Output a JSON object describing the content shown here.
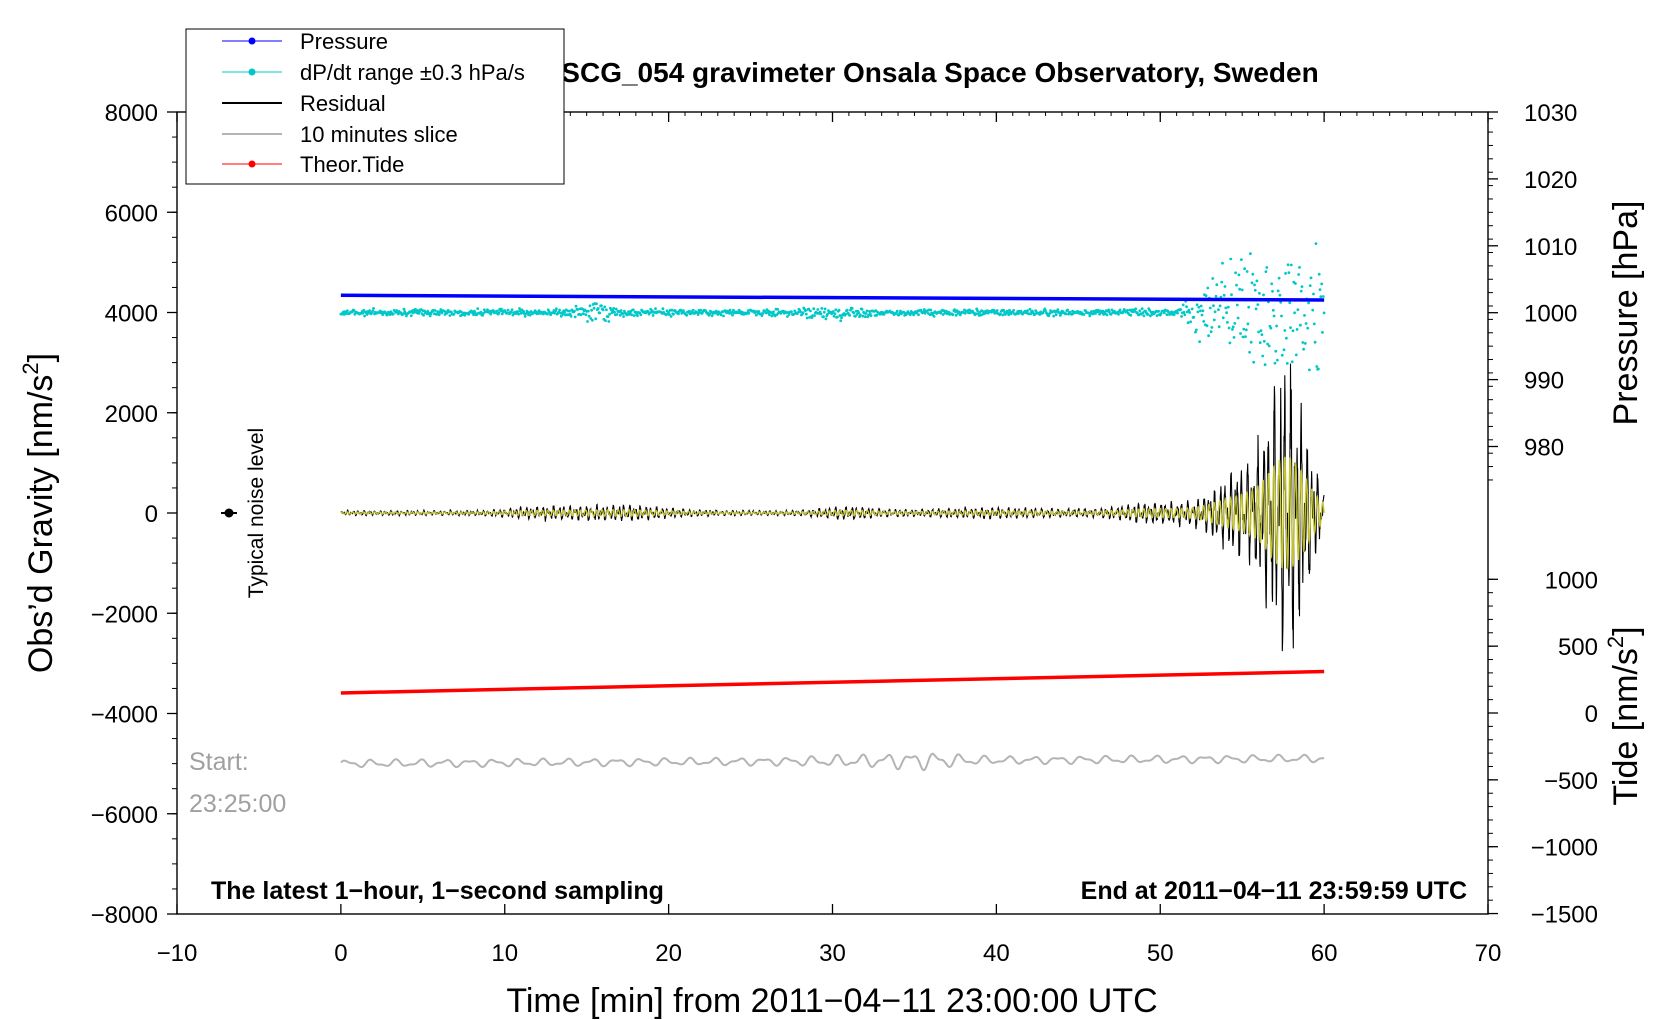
{
  "chart_data": {
    "type": "line",
    "title": "SCG_054 gravimeter Onsala Space Observatory, Sweden",
    "xlabel": "Time [min] from 2011−04−11 23:00:00 UTC",
    "ylabel_left_prefix": "Obs’d Gravity [nm/s",
    "ylabel_left_sup": "2",
    "ylabel_left_suffix": "]",
    "ylabel_right_pressure": "Pressure [hPa]",
    "ylabel_right_tide_prefix": "Tide [nm/s",
    "ylabel_right_tide_sup": "2",
    "ylabel_right_tide_suffix": "]",
    "xlim": [
      -10,
      70
    ],
    "ylim_left": [
      -8000,
      8000
    ],
    "x_ticks": [
      -10,
      0,
      10,
      20,
      30,
      40,
      50,
      60,
      70
    ],
    "x_tick_labels": [
      "−10",
      "0",
      "10",
      "20",
      "30",
      "40",
      "50",
      "60",
      "70"
    ],
    "y_left_ticks": [
      8000,
      6000,
      4000,
      2000,
      0,
      -2000,
      -4000,
      -6000,
      -8000
    ],
    "y_left_tick_labels": [
      "8000",
      "6000",
      "4000",
      "2000",
      "0",
      "−2000",
      "−4000",
      "−6000",
      "−8000"
    ],
    "pressure_ticks": [
      1030,
      1020,
      1010,
      1000,
      990,
      980
    ],
    "pressure_tick_labels": [
      "1030",
      "1020",
      "1010",
      "1000",
      "990",
      "980"
    ],
    "tide_ticks": [
      1000,
      500,
      0,
      -500,
      -1000,
      -1500
    ],
    "tide_tick_labels": [
      "1000",
      "500",
      "0",
      "−500",
      "−1000",
      "−1500"
    ],
    "legend": {
      "placement": "top-left",
      "entries": [
        {
          "label": "Pressure",
          "color": "#0000ff",
          "marker": true
        },
        {
          "label": "dP/dt range ±0.3 hPa/s",
          "color": "#00c8c8",
          "marker": true
        },
        {
          "label": "Residual",
          "color": "#000000",
          "marker": false
        },
        {
          "label": "10 minutes slice",
          "color": "#b4b4b4",
          "marker": false
        },
        {
          "label": "Theor.Tide",
          "color": "#ff0000",
          "marker": true
        }
      ]
    },
    "annotations": {
      "noise_label": "Typical noise level",
      "start_label": "Start:",
      "start_time": "23:25:00",
      "bottom_left": "The latest 1−hour, 1−second sampling",
      "bottom_right": "End at 2011−04−11 23:59:59 UTC"
    },
    "series": [
      {
        "name": "Pressure",
        "axis": "pressure",
        "color": "#0000ff",
        "x": [
          0,
          60
        ],
        "values": [
          1002.6,
          1001.9
        ]
      },
      {
        "name": "dP/dt range ±0.3 hPa/s",
        "axis": "gravity",
        "color": "#00c8c8",
        "x": [
          0,
          60
        ],
        "values": [
          4000,
          4000
        ]
      },
      {
        "name": "Residual",
        "axis": "gravity",
        "color": "#000000",
        "x": [
          0,
          60
        ],
        "values": [
          0,
          0
        ]
      },
      {
        "name": "10 minutes slice",
        "axis": "gravity",
        "color": "#b4b4b4",
        "x": [
          0,
          60
        ],
        "values": [
          -5000,
          -4900
        ]
      },
      {
        "name": "Theor.Tide",
        "axis": "tide",
        "color": "#ff0000",
        "x": [
          0,
          60
        ],
        "values": [
          150,
          310
        ]
      }
    ],
    "colors": {
      "pressure": "#0000ff",
      "dpdt": "#00c8c8",
      "residual": "#000000",
      "filtered": "#c8c832",
      "slice": "#b4b4b4",
      "tide": "#ff0000",
      "start_text": "#a0a0a0"
    }
  }
}
